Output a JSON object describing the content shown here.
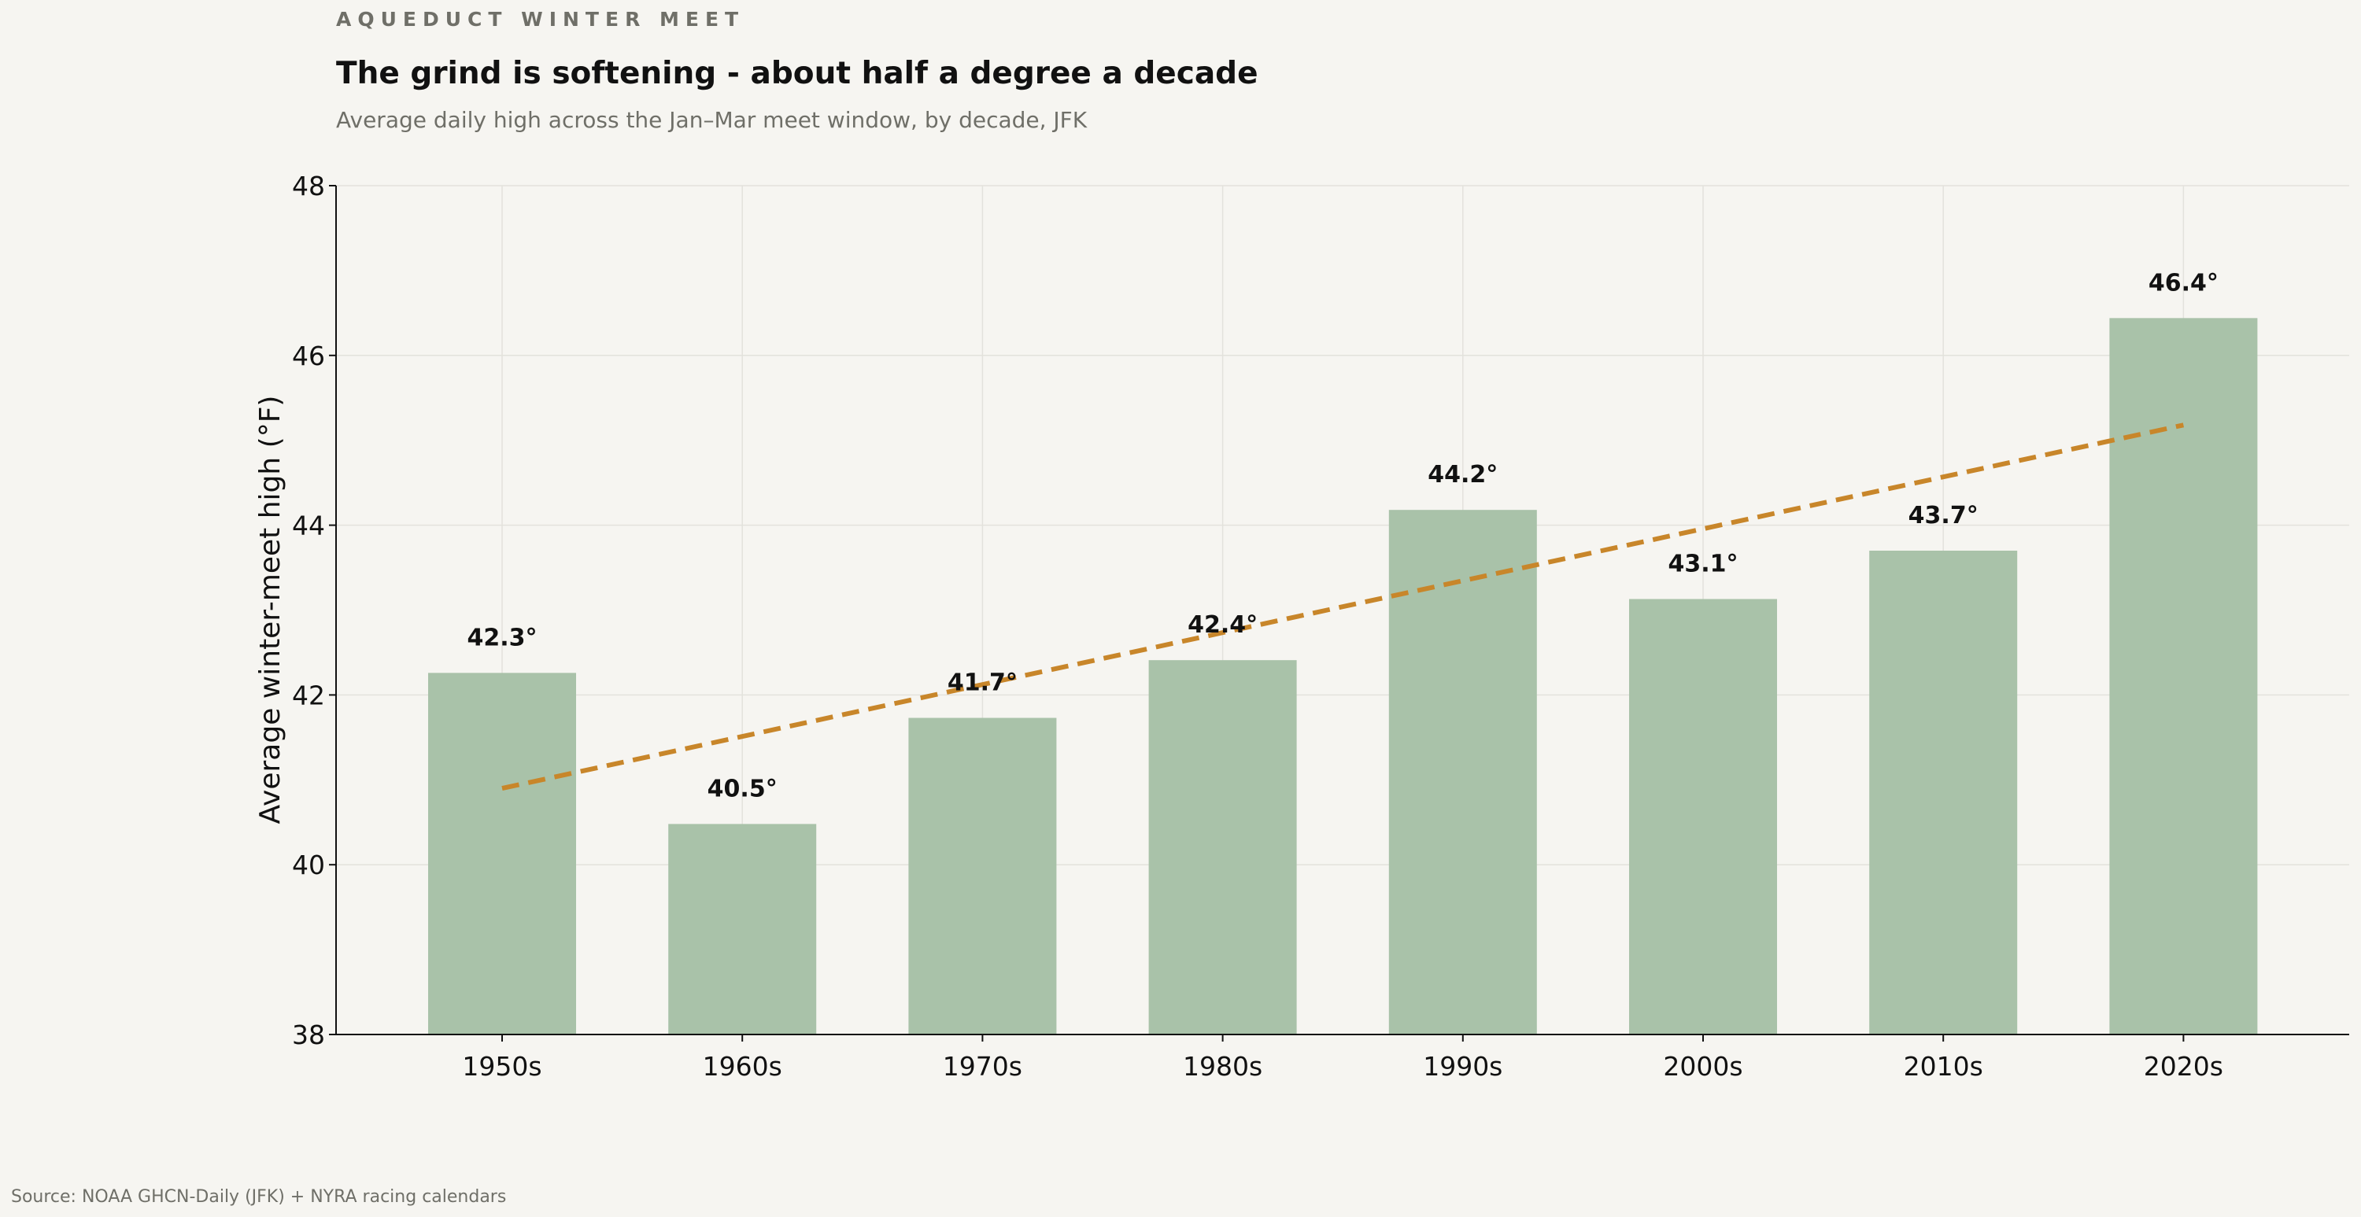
{
  "header": {
    "kicker": "AQUEDUCT WINTER MEET",
    "title": "The grind is softening - about half a degree a decade",
    "subtitle": "Average daily high across the Jan–Mar meet window, by decade, JFK"
  },
  "footer": {
    "source": "Source: NOAA GHCN-Daily (JFK) + NYRA racing calendars"
  },
  "colors": {
    "background": "#f6f5f1",
    "bar": "#a9c2a9",
    "trend": "#c8862a",
    "grid": "#e3e2dc",
    "axis": "#111111"
  },
  "chart_data": {
    "type": "bar",
    "categories": [
      "1950s",
      "1960s",
      "1970s",
      "1980s",
      "1990s",
      "2000s",
      "2010s",
      "2020s"
    ],
    "values": [
      42.26,
      40.48,
      41.73,
      42.41,
      44.18,
      43.13,
      43.7,
      46.44
    ],
    "value_labels": [
      "42.3°",
      "40.5°",
      "41.7°",
      "42.4°",
      "44.2°",
      "43.1°",
      "43.7°",
      "46.4°"
    ],
    "xlabel": "",
    "ylabel": "Average winter-meet high (°F)",
    "ylim": [
      38,
      48
    ],
    "yticks": [
      38,
      40,
      42,
      44,
      46,
      48
    ],
    "grid": true,
    "trend": {
      "style": "dashed",
      "start": 40.9,
      "end": 45.18
    }
  }
}
